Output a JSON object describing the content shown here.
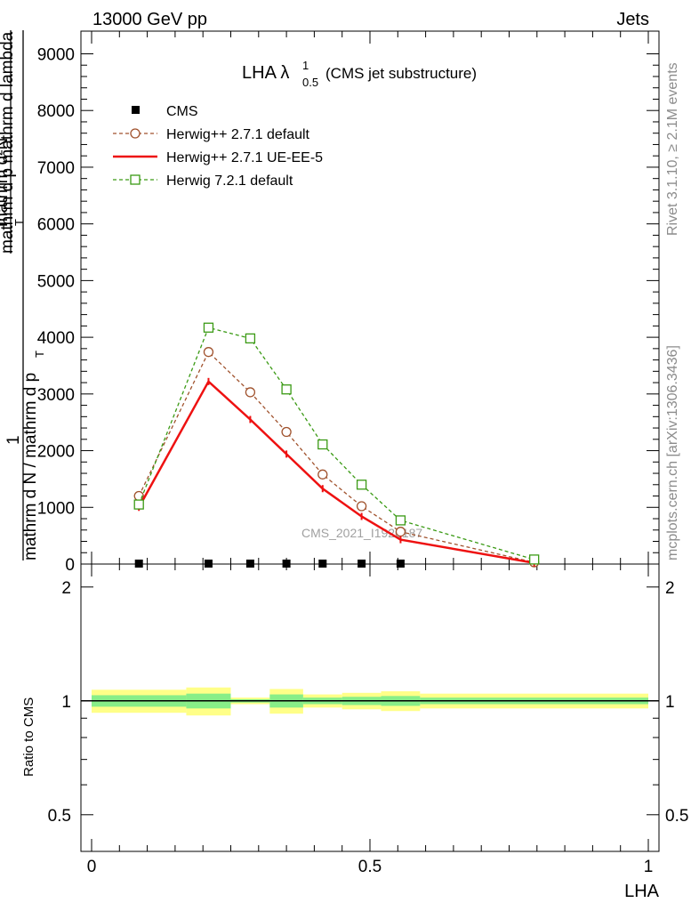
{
  "header": {
    "energy_label": "13000 GeV pp",
    "process_label": "Jets"
  },
  "side_labels": {
    "rivet_version": "Rivet 3.1.10, ≥ 2.1M events",
    "website": "mcplots.cern.ch [arXiv:1306.3436]"
  },
  "watermark": "CMS_2021_I1920187",
  "main_panel": {
    "title": "LHA λ",
    "title_sup": "1",
    "title_sub": "0.5",
    "title_suffix": "(CMS jet substructure)",
    "ylabel_top": "mathrm d²N",
    "ylabel_top_sub": "T",
    "ylabel_top2": "mathrm d p  mathrm d lambda",
    "ylabel_one": "1",
    "ylabel_bottom": "mathrm d N / mathrm d p",
    "ylabel_bottom_sub": "T",
    "ytick_labels": [
      "0",
      "1000",
      "2000",
      "3000",
      "4000",
      "5000",
      "6000",
      "7000",
      "8000",
      "9000"
    ]
  },
  "ratio_panel": {
    "ylabel": "Ratio to CMS",
    "ytick_labels": [
      "0.5",
      "1",
      "2"
    ]
  },
  "xaxis": {
    "label": "LHA",
    "tick_labels": [
      "0",
      "0.5",
      "1"
    ]
  },
  "legend": {
    "cms": "CMS",
    "herwig_default": "Herwig++ 2.7.1 default",
    "herwig_ueee5": "Herwig++ 2.7.1 UE-EE-5",
    "herwig7": "Herwig 7.2.1 default"
  },
  "colors": {
    "cms": "#000000",
    "herwig_default": "#a0522d",
    "herwig_ueee5": "#ee1111",
    "herwig7": "#3a9a14",
    "band_inner": "#88ee88",
    "band_outer": "#ffff88"
  },
  "chart_data": {
    "type": "line",
    "x_axis": {
      "range": [
        0,
        1
      ],
      "ticks": [
        0,
        0.5,
        1
      ]
    },
    "main_y_range": [
      0,
      9400
    ],
    "ratio_y_range": [
      0.4,
      2.3
    ],
    "ratio_y_log": true,
    "cms": {
      "x": [
        0.085,
        0.21,
        0.285,
        0.35,
        0.415,
        0.485,
        0.555
      ],
      "y": [
        0,
        0,
        0,
        0,
        0,
        0,
        0
      ]
    },
    "series": [
      {
        "name": "Herwig++ 2.7.1 default",
        "x": [
          0.085,
          0.21,
          0.285,
          0.35,
          0.415,
          0.485,
          0.555,
          0.795
        ],
        "y": [
          1200,
          3740,
          3030,
          2330,
          1580,
          1020,
          570,
          30
        ]
      },
      {
        "name": "Herwig++ 2.7.1 UE-EE-5",
        "x": [
          0.085,
          0.21,
          0.285,
          0.35,
          0.415,
          0.485,
          0.555,
          0.795
        ],
        "y": [
          1000,
          3220,
          2550,
          1940,
          1330,
          840,
          430,
          20
        ]
      },
      {
        "name": "Herwig 7.2.1 default",
        "x": [
          0.085,
          0.21,
          0.285,
          0.35,
          0.415,
          0.485,
          0.555,
          0.795
        ],
        "y": [
          1050,
          4170,
          3980,
          3080,
          2110,
          1400,
          770,
          80
        ]
      }
    ],
    "ratio_bands": [
      {
        "x0": 0.0,
        "x1": 0.17,
        "inner": [
          0.965,
          1.035
        ],
        "outer": [
          0.93,
          1.07
        ]
      },
      {
        "x0": 0.17,
        "x1": 0.25,
        "inner": [
          0.955,
          1.045
        ],
        "outer": [
          0.915,
          1.085
        ]
      },
      {
        "x0": 0.25,
        "x1": 0.32,
        "inner": [
          0.99,
          1.01
        ],
        "outer": [
          0.98,
          1.02
        ]
      },
      {
        "x0": 0.32,
        "x1": 0.38,
        "inner": [
          0.96,
          1.04
        ],
        "outer": [
          0.925,
          1.075
        ]
      },
      {
        "x0": 0.38,
        "x1": 0.45,
        "inner": [
          0.98,
          1.02
        ],
        "outer": [
          0.96,
          1.04
        ]
      },
      {
        "x0": 0.45,
        "x1": 0.52,
        "inner": [
          0.975,
          1.025
        ],
        "outer": [
          0.95,
          1.05
        ]
      },
      {
        "x0": 0.52,
        "x1": 0.59,
        "inner": [
          0.97,
          1.03
        ],
        "outer": [
          0.94,
          1.06
        ]
      },
      {
        "x0": 0.59,
        "x1": 1.0,
        "inner": [
          0.98,
          1.02
        ],
        "outer": [
          0.955,
          1.045
        ]
      }
    ]
  }
}
